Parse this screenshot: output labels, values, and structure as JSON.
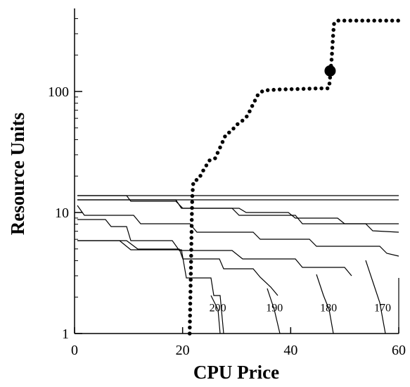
{
  "chart_data": {
    "type": "line",
    "title": "",
    "xlabel": "CPU Price",
    "ylabel": "Resource Units",
    "xlim": [
      0,
      60
    ],
    "ylim": [
      1,
      500
    ],
    "y_scale": "log",
    "grid": false,
    "x_ticks": [
      {
        "value": 0,
        "label": "0"
      },
      {
        "value": 20,
        "label": "20"
      },
      {
        "value": 40,
        "label": "40"
      },
      {
        "value": 60,
        "label": "60"
      }
    ],
    "y_ticks": [
      {
        "value": 1,
        "label": "1"
      },
      {
        "value": 10,
        "label": "10"
      },
      {
        "value": 100,
        "label": "100"
      }
    ],
    "supply_curve": {
      "style": "dotted",
      "color": "#000000",
      "points": [
        [
          21.3,
          1
        ],
        [
          21.4,
          1.6
        ],
        [
          21.5,
          2.8
        ],
        [
          21.6,
          5
        ],
        [
          21.7,
          9
        ],
        [
          21.8,
          14
        ],
        [
          22,
          18
        ],
        [
          23,
          19
        ],
        [
          24,
          23
        ],
        [
          25,
          27
        ],
        [
          26,
          28
        ],
        [
          27,
          35
        ],
        [
          28,
          44
        ],
        [
          29,
          47
        ],
        [
          30,
          53
        ],
        [
          31,
          57
        ],
        [
          32,
          63
        ],
        [
          33,
          78
        ],
        [
          34,
          95
        ],
        [
          35,
          102
        ],
        [
          38,
          104
        ],
        [
          42,
          105
        ],
        [
          45,
          106
        ],
        [
          47,
          106
        ],
        [
          47.2,
          118
        ],
        [
          47.4,
          150
        ],
        [
          47.6,
          190
        ],
        [
          47.8,
          270
        ],
        [
          48,
          360
        ],
        [
          48.5,
          385
        ],
        [
          52,
          385
        ],
        [
          56,
          385
        ],
        [
          60,
          385
        ]
      ],
      "marker": [
        47.3,
        148
      ]
    },
    "demand_curves": [
      {
        "label": "200",
        "label_at": [
          26.5,
          1.65
        ],
        "points": [
          [
            1,
            14
          ],
          [
            60,
            14
          ]
        ]
      },
      {
        "label": "190",
        "label_at": [
          37,
          1.65
        ],
        "points": [
          [
            1,
            14
          ],
          [
            60,
            14
          ]
        ]
      },
      {
        "label": "180",
        "label_at": [
          47,
          1.65
        ],
        "points": [
          [
            1,
            14
          ],
          [
            60,
            14
          ]
        ]
      },
      {
        "label": "170",
        "label_at": [
          57,
          1.65
        ],
        "points": [
          [
            1,
            14
          ],
          [
            60,
            14
          ]
        ]
      }
    ]
  }
}
